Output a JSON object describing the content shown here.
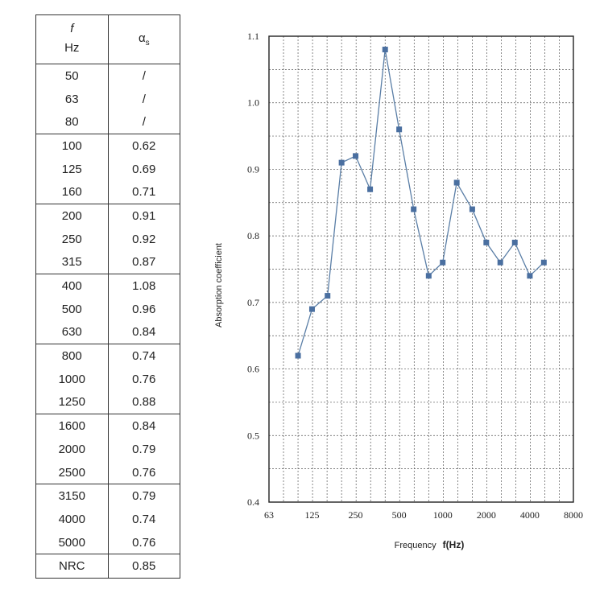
{
  "table": {
    "col1_symbol": "f",
    "col1_unit": "Hz",
    "col2_symbol": "α",
    "col2_sub": "s",
    "groups": [
      [
        [
          "50",
          "/"
        ],
        [
          "63",
          "/"
        ],
        [
          "80",
          "/"
        ]
      ],
      [
        [
          "100",
          "0.62"
        ],
        [
          "125",
          "0.69"
        ],
        [
          "160",
          "0.71"
        ]
      ],
      [
        [
          "200",
          "0.91"
        ],
        [
          "250",
          "0.92"
        ],
        [
          "315",
          "0.87"
        ]
      ],
      [
        [
          "400",
          "1.08"
        ],
        [
          "500",
          "0.96"
        ],
        [
          "630",
          "0.84"
        ]
      ],
      [
        [
          "800",
          "0.74"
        ],
        [
          "1000",
          "0.76"
        ],
        [
          "1250",
          "0.88"
        ]
      ],
      [
        [
          "1600",
          "0.84"
        ],
        [
          "2000",
          "0.79"
        ],
        [
          "2500",
          "0.76"
        ]
      ],
      [
        [
          "3150",
          "0.79"
        ],
        [
          "4000",
          "0.74"
        ],
        [
          "5000",
          "0.76"
        ]
      ],
      [
        [
          "NRC",
          "0.85"
        ]
      ]
    ]
  },
  "chart_data": {
    "type": "line",
    "xscale": "log",
    "xlabel": "Frequency",
    "xlabel_unit": "f(Hz)",
    "ylabel": "Absorption coefficient",
    "ylim": [
      0.4,
      1.1
    ],
    "yticks": [
      "0.4",
      "0.5",
      "0.6",
      "0.7",
      "0.8",
      "0.9",
      "1.0",
      "1.1"
    ],
    "xticks": [
      "63",
      "125",
      "250",
      "500",
      "1000",
      "2000",
      "4000",
      "8000"
    ],
    "grid": true,
    "line_color": "#5a7ea6",
    "marker_color": "#4a6fa0",
    "x": [
      100,
      125,
      160,
      200,
      250,
      315,
      400,
      500,
      630,
      800,
      1000,
      1250,
      1600,
      2000,
      2500,
      3150,
      4000,
      5000
    ],
    "values": [
      0.62,
      0.69,
      0.71,
      0.91,
      0.92,
      0.87,
      1.08,
      0.96,
      0.84,
      0.74,
      0.76,
      0.88,
      0.84,
      0.79,
      0.76,
      0.79,
      0.74,
      0.76
    ]
  }
}
